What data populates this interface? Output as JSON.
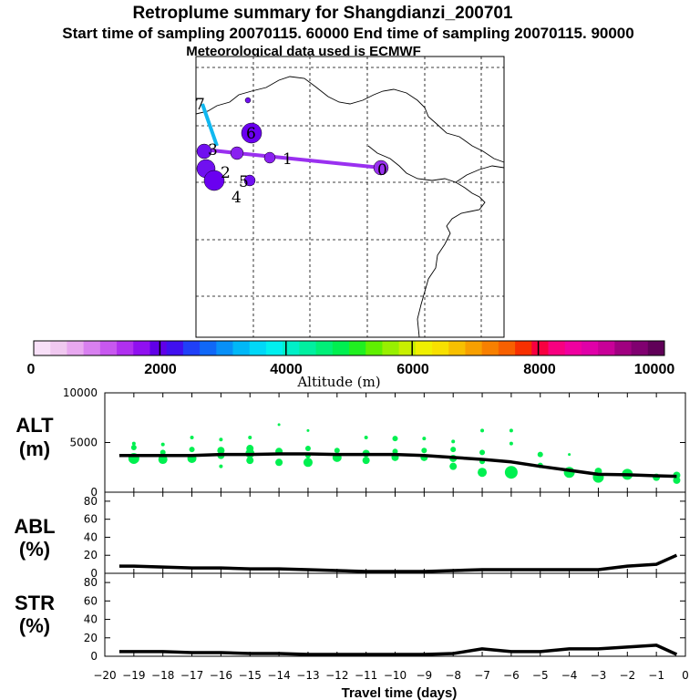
{
  "header": {
    "title": "Retroplume summary for Shangdianzi_200701",
    "sampling_line": "Start time of sampling 20070115. 60000     End time of sampling 20070115. 90000",
    "met_line": "Meteorological data used is ECMWF"
  },
  "colorbar": {
    "label": "Altitude (m)",
    "tick_labels": [
      "0",
      "2000",
      "4000",
      "6000",
      "8000",
      "10000"
    ],
    "colors": [
      "#f8e0f8",
      "#f0c8f0",
      "#e8a8f0",
      "#d880f0",
      "#c858f0",
      "#b030f0",
      "#9010f0",
      "#6000e8",
      "#4010f0",
      "#2040f8",
      "#1068f8",
      "#0890f8",
      "#00b8f8",
      "#00d8f8",
      "#00f0f0",
      "#00f0c8",
      "#00f0a0",
      "#00f078",
      "#00f050",
      "#20f020",
      "#60f000",
      "#98f000",
      "#c8f000",
      "#f0f000",
      "#f8e000",
      "#f8c000",
      "#f8a000",
      "#f88000",
      "#f86000",
      "#f83000",
      "#f80040",
      "#f80080",
      "#f000a0",
      "#e000a8",
      "#c80098",
      "#a00080",
      "#800070",
      "#600058"
    ]
  },
  "map": {
    "trajectory_points": [
      {
        "label": "0",
        "color": "#9a30f0"
      },
      {
        "label": "1",
        "color": "#8a20f0"
      },
      {
        "label": "2",
        "color": "#8a20f0"
      },
      {
        "label": "3",
        "color": "#7a10f0"
      },
      {
        "label": "4",
        "color": "#7a10f0"
      },
      {
        "label": "5",
        "color": "#7a10f0"
      },
      {
        "label": "6",
        "color": "#00c0f0"
      },
      {
        "label": "7",
        "color": "#7a10f0"
      }
    ]
  },
  "chart_data": [
    {
      "type": "line",
      "panel": "ALT",
      "ylabel_line1": "ALT",
      "ylabel_line2": "(m)",
      "ylim": [
        0,
        10000
      ],
      "yticks": [
        "10000",
        "5000",
        "0"
      ],
      "x": [
        -19.5,
        -19,
        -18,
        -17,
        -16,
        -15,
        -14,
        -13,
        -12,
        -11,
        -10,
        -9,
        -8,
        -7,
        -6,
        -5,
        -4,
        -3,
        -2,
        -1,
        -0.3
      ],
      "values": [
        3700,
        3700,
        3700,
        3700,
        3800,
        3800,
        3850,
        3850,
        3800,
        3800,
        3800,
        3700,
        3500,
        3300,
        3050,
        2600,
        2200,
        1800,
        1750,
        1650,
        1600
      ],
      "scatter_series": {
        "name": "particle altitudes",
        "color": "#00f050",
        "points": [
          {
            "x": -19,
            "y": 3400,
            "s": 6
          },
          {
            "x": -19,
            "y": 4500,
            "s": 3
          },
          {
            "x": -19,
            "y": 4900,
            "s": 2
          },
          {
            "x": -18,
            "y": 3300,
            "s": 5
          },
          {
            "x": -18,
            "y": 4000,
            "s": 3
          },
          {
            "x": -18,
            "y": 4800,
            "s": 2
          },
          {
            "x": -17,
            "y": 3400,
            "s": 5
          },
          {
            "x": -17,
            "y": 4300,
            "s": 3
          },
          {
            "x": -17,
            "y": 5500,
            "s": 2
          },
          {
            "x": -16,
            "y": 2600,
            "s": 2
          },
          {
            "x": -16,
            "y": 3700,
            "s": 4
          },
          {
            "x": -16,
            "y": 4200,
            "s": 4
          },
          {
            "x": -16,
            "y": 5300,
            "s": 2
          },
          {
            "x": -15,
            "y": 3200,
            "s": 4
          },
          {
            "x": -15,
            "y": 3900,
            "s": 5
          },
          {
            "x": -15,
            "y": 4400,
            "s": 4
          },
          {
            "x": -15,
            "y": 5500,
            "s": 2
          },
          {
            "x": -14,
            "y": 3000,
            "s": 4
          },
          {
            "x": -14,
            "y": 4100,
            "s": 4
          },
          {
            "x": -14,
            "y": 6800,
            "s": 1.5
          },
          {
            "x": -13,
            "y": 3000,
            "s": 5
          },
          {
            "x": -13,
            "y": 3700,
            "s": 3
          },
          {
            "x": -13,
            "y": 4400,
            "s": 3
          },
          {
            "x": -13,
            "y": 6200,
            "s": 1.5
          },
          {
            "x": -12,
            "y": 3500,
            "s": 5
          },
          {
            "x": -12,
            "y": 4200,
            "s": 3
          },
          {
            "x": -11,
            "y": 3200,
            "s": 4
          },
          {
            "x": -11,
            "y": 3900,
            "s": 4
          },
          {
            "x": -11,
            "y": 5500,
            "s": 2
          },
          {
            "x": -10,
            "y": 3500,
            "s": 4
          },
          {
            "x": -10,
            "y": 4100,
            "s": 3
          },
          {
            "x": -10,
            "y": 5400,
            "s": 3
          },
          {
            "x": -9,
            "y": 3500,
            "s": 4
          },
          {
            "x": -9,
            "y": 4200,
            "s": 3
          },
          {
            "x": -9,
            "y": 5400,
            "s": 2
          },
          {
            "x": -8,
            "y": 2600,
            "s": 4
          },
          {
            "x": -8,
            "y": 3400,
            "s": 4
          },
          {
            "x": -8,
            "y": 4300,
            "s": 3
          },
          {
            "x": -8,
            "y": 5100,
            "s": 2
          },
          {
            "x": -7,
            "y": 2000,
            "s": 5
          },
          {
            "x": -7,
            "y": 3100,
            "s": 3
          },
          {
            "x": -7,
            "y": 4000,
            "s": 3
          },
          {
            "x": -7,
            "y": 6200,
            "s": 2
          },
          {
            "x": -6,
            "y": 2000,
            "s": 7
          },
          {
            "x": -6,
            "y": 4900,
            "s": 2
          },
          {
            "x": -6,
            "y": 6200,
            "s": 2
          },
          {
            "x": -5,
            "y": 2700,
            "s": 3
          },
          {
            "x": -5,
            "y": 3800,
            "s": 3
          },
          {
            "x": -4,
            "y": 2000,
            "s": 6
          },
          {
            "x": -4,
            "y": 3800,
            "s": 1.5
          },
          {
            "x": -3,
            "y": 1500,
            "s": 6
          },
          {
            "x": -3,
            "y": 2100,
            "s": 4
          },
          {
            "x": -2,
            "y": 1800,
            "s": 6
          },
          {
            "x": -1,
            "y": 1500,
            "s": 4
          },
          {
            "x": -0.3,
            "y": 1200,
            "s": 4
          },
          {
            "x": -0.3,
            "y": 1700,
            "s": 4
          }
        ]
      }
    },
    {
      "type": "line",
      "panel": "ABL",
      "ylabel_line1": "ABL",
      "ylabel_line2": "(%)",
      "ylim": [
        0,
        90
      ],
      "yticks": [
        "80",
        "60",
        "40",
        "20",
        "0"
      ],
      "x": [
        -19.5,
        -19,
        -18,
        -17,
        -16,
        -15,
        -14,
        -13,
        -12,
        -11,
        -10,
        -9,
        -8,
        -7,
        -6,
        -5,
        -4,
        -3,
        -2,
        -1,
        -0.3
      ],
      "values": [
        8,
        8,
        7,
        6,
        6,
        5,
        5,
        4,
        3,
        2,
        2,
        2,
        3,
        4,
        4,
        4,
        4,
        4,
        8,
        10,
        20
      ]
    },
    {
      "type": "line",
      "panel": "STR",
      "ylabel_line1": "STR",
      "ylabel_line2": "(%)",
      "ylim": [
        0,
        90
      ],
      "yticks": [
        "80",
        "60",
        "40",
        "20",
        "0"
      ],
      "x": [
        -19.5,
        -19,
        -18,
        -17,
        -16,
        -15,
        -14,
        -13,
        -12,
        -11,
        -10,
        -9,
        -8,
        -7,
        -6,
        -5,
        -4,
        -3,
        -2,
        -1,
        -0.3
      ],
      "values": [
        5,
        5,
        5,
        4,
        4,
        3,
        3,
        2,
        2,
        2,
        2,
        2,
        3,
        8,
        5,
        5,
        8,
        8,
        10,
        12,
        2
      ],
      "xlabel": "Travel time (days)",
      "xlim": [
        -20,
        0
      ],
      "xtick_labels": [
        "−20",
        "−19",
        "−18",
        "−17",
        "−16",
        "−15",
        "−14",
        "−13",
        "−12",
        "−11",
        "−10",
        "−9",
        "−8",
        "−7",
        "−6",
        "−5",
        "−4",
        "−3",
        "−2",
        "−1",
        "0"
      ]
    }
  ]
}
